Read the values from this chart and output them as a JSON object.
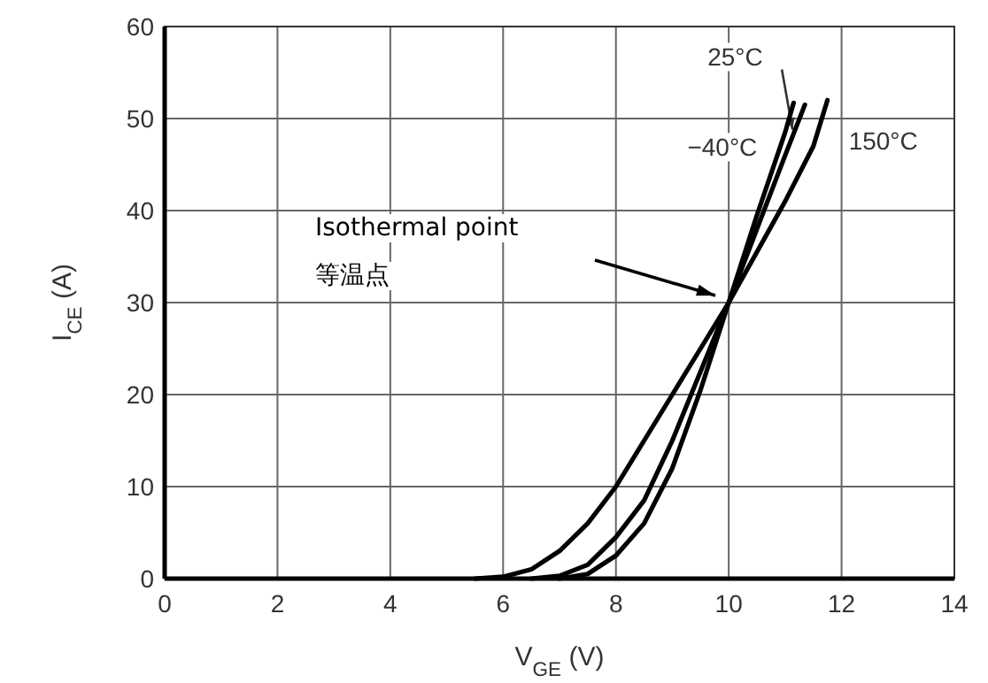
{
  "chart_data": {
    "type": "line",
    "xlabel": "V$_{GE}$ (V)",
    "ylabel": "I$_{CE}$ (A)",
    "xlim": [
      0,
      14
    ],
    "xticks": [
      0,
      2,
      4,
      6,
      8,
      10,
      12,
      14
    ],
    "ylim": [
      0,
      60
    ],
    "yticks": [
      0,
      10,
      20,
      30,
      40,
      50,
      60
    ],
    "grid": true,
    "line_style": "solid",
    "marker": "none",
    "series": [
      {
        "name": "25°C",
        "color": "#000000",
        "x": [
          6.5,
          7,
          7.5,
          8,
          8.5,
          9,
          9.5,
          10,
          10.5,
          11,
          11.35
        ],
        "values": [
          0,
          0.3,
          1.5,
          4.5,
          8.5,
          15,
          22.5,
          30,
          38,
          46,
          51.5
        ]
      },
      {
        "name": "−40°C",
        "color": "#000000",
        "x": [
          7,
          7.5,
          8,
          8.5,
          9,
          9.5,
          10,
          10.5,
          11,
          11.15
        ],
        "values": [
          0,
          0.5,
          2.5,
          6,
          12,
          20.5,
          30,
          39.5,
          48.5,
          51.7
        ]
      },
      {
        "name": "150°C",
        "color": "#000000",
        "x": [
          5.5,
          6,
          6.5,
          7,
          7.5,
          8,
          8.5,
          9,
          9.5,
          10,
          10.5,
          11,
          11.5,
          11.75
        ],
        "values": [
          0,
          0.2,
          1,
          3,
          6,
          10,
          15,
          20,
          25,
          30,
          35.5,
          41,
          47,
          52
        ]
      }
    ],
    "annotations": [
      "Isothermal point\n等温点"
    ]
  }
}
